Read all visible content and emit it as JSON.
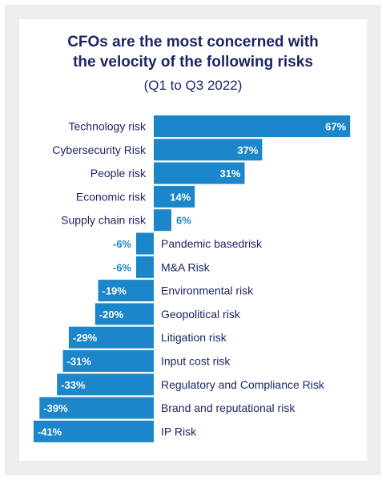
{
  "title_line1": "CFOs are the most concerned with",
  "title_line2": "the velocity of the following risks",
  "subtitle": "(Q1 to Q3 2022)",
  "colors": {
    "bar": "#1b86c9",
    "label_dark": "#1c2566",
    "outside_value": "#1b86c9",
    "inside_value": "#ffffff"
  },
  "chart_data": {
    "type": "bar",
    "orientation": "horizontal",
    "title": "CFOs are the most concerned with the velocity of the following risks",
    "subtitle": "(Q1 to Q3 2022)",
    "categories": [
      "Technology risk",
      "Cybersecurity Risk",
      "People risk",
      "Economic risk",
      "Supply chain risk",
      "Pandemic basedrisk",
      "M&A Risk",
      "Environmental risk",
      "Geopolitical risk",
      "Litigation risk",
      "Input cost risk",
      "Regulatory and Compliance Risk",
      "Brand and reputational risk",
      "IP Risk"
    ],
    "values": [
      67,
      37,
      31,
      14,
      6,
      -6,
      -6,
      -19,
      -20,
      -29,
      -31,
      -33,
      -39,
      -41
    ],
    "value_labels": [
      "67%",
      "37%",
      "31%",
      "14%",
      "6%",
      "-6%",
      "-6%",
      "-19%",
      "-20%",
      "-29%",
      "-31%",
      "-33%",
      "-39%",
      "-41%"
    ],
    "xlim": [
      -41,
      67
    ],
    "grid": false,
    "legend": "none"
  }
}
